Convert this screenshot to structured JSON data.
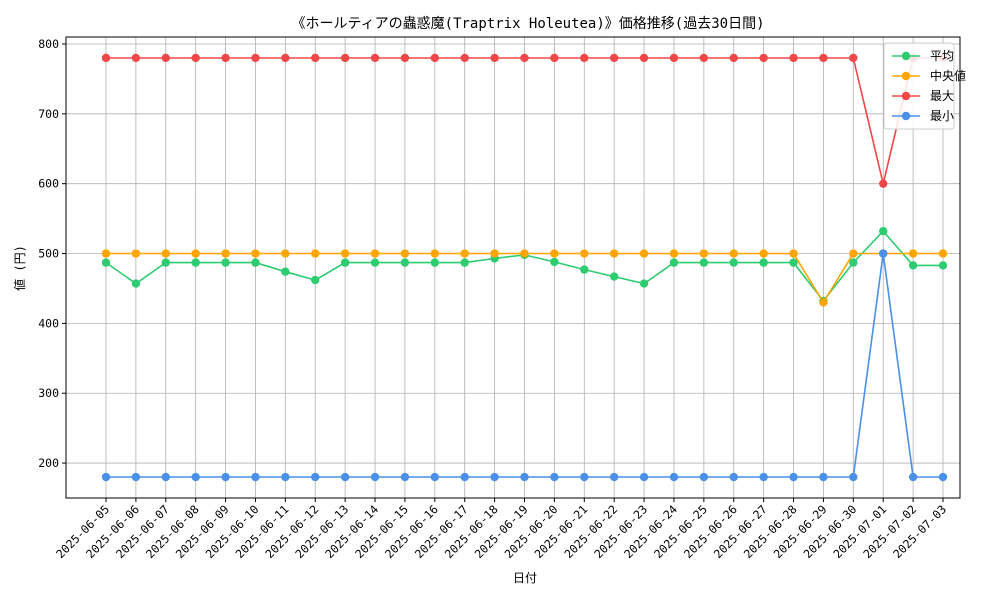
{
  "chart_data": {
    "type": "line",
    "title": "《ホールティアの蟲惑魔(Traptrix Holeutea)》価格推移(過去30日間)",
    "xlabel": "日付",
    "ylabel": "値 (円)",
    "ylim": [
      150,
      810
    ],
    "yticks": [
      200,
      300,
      400,
      500,
      600,
      700,
      800
    ],
    "grid": true,
    "legend_position": "top-right",
    "x": [
      "2025-06-05",
      "2025-06-06",
      "2025-06-07",
      "2025-06-08",
      "2025-06-09",
      "2025-06-10",
      "2025-06-11",
      "2025-06-12",
      "2025-06-13",
      "2025-06-14",
      "2025-06-15",
      "2025-06-16",
      "2025-06-17",
      "2025-06-18",
      "2025-06-19",
      "2025-06-20",
      "2025-06-21",
      "2025-06-22",
      "2025-06-23",
      "2025-06-24",
      "2025-06-25",
      "2025-06-26",
      "2025-06-27",
      "2025-06-28",
      "2025-06-29",
      "2025-06-30",
      "2025-07-01",
      "2025-07-02",
      "2025-07-03"
    ],
    "series": [
      {
        "name": "平均",
        "color": "#2ecc71",
        "values": [
          487,
          457,
          487,
          487,
          487,
          487,
          474,
          462,
          487,
          487,
          487,
          487,
          487,
          493,
          498,
          488,
          477,
          467,
          457,
          487,
          487,
          487,
          487,
          487,
          432,
          487,
          532,
          483,
          483
        ]
      },
      {
        "name": "中央値",
        "color": "#ffa500",
        "values": [
          500,
          500,
          500,
          500,
          500,
          500,
          500,
          500,
          500,
          500,
          500,
          500,
          500,
          500,
          500,
          500,
          500,
          500,
          500,
          500,
          500,
          500,
          500,
          500,
          430,
          500,
          500,
          500,
          500
        ]
      },
      {
        "name": "最大",
        "color": "#f04848",
        "values": [
          780,
          780,
          780,
          780,
          780,
          780,
          780,
          780,
          780,
          780,
          780,
          780,
          780,
          780,
          780,
          780,
          780,
          780,
          780,
          780,
          780,
          780,
          780,
          780,
          780,
          780,
          600,
          780,
          780
        ]
      },
      {
        "name": "最小",
        "color": "#4a90e8",
        "values": [
          180,
          180,
          180,
          180,
          180,
          180,
          180,
          180,
          180,
          180,
          180,
          180,
          180,
          180,
          180,
          180,
          180,
          180,
          180,
          180,
          180,
          180,
          180,
          180,
          180,
          180,
          500,
          180,
          180
        ]
      }
    ]
  }
}
